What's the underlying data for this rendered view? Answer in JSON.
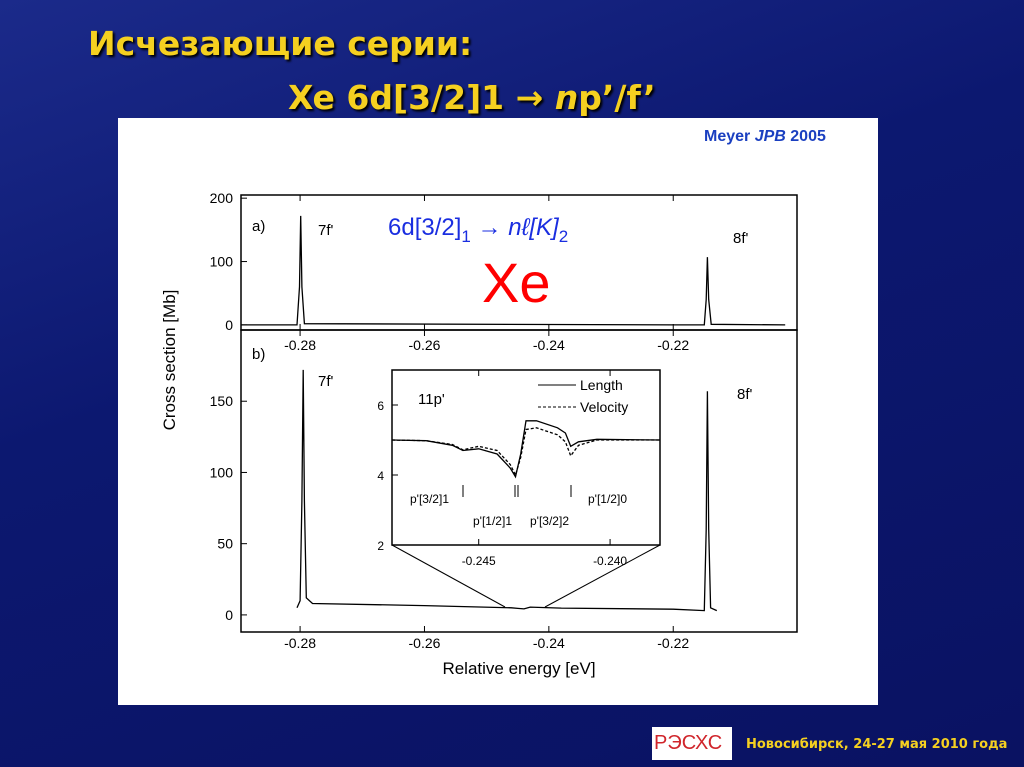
{
  "slide": {
    "title_line1": "Исчезающие серии:",
    "title_line2_prefix": "Xe 6d[3/2]1 ",
    "title_arrow": "→",
    "title_line2_n": "n",
    "title_line2_suffix": "p’/f’",
    "reference_author": "Meyer ",
    "reference_journal": "JPB",
    "reference_year": " 2005",
    "footer": "Новосибирск, 24-27 мая 2010 года",
    "logo_text": "РЭСХС",
    "colors": {
      "title": "#f5d020",
      "background": "#0c1870",
      "reference": "#1a3fc0",
      "element": "#ff0000",
      "transition": "#1a2ee0"
    }
  },
  "chart_data": [
    {
      "type": "line",
      "panel_label": "a)",
      "annotations": [
        "7f'",
        "8f'"
      ],
      "transition_label": {
        "main": "6d[3/2]",
        "sub1": "1",
        "arrow": " → ",
        "n": "n",
        "l": "ℓ",
        "K": "[K]",
        "sub2": "2"
      },
      "element_label": "Xe",
      "xlim": [
        -0.2895,
        -0.2001
      ],
      "ylim": [
        -8,
        205
      ],
      "yticks": [
        "0",
        "100",
        "200"
      ],
      "series": [
        {
          "x": [
            -0.2895,
            -0.2805,
            -0.2801,
            -0.2799,
            -0.2797,
            -0.2793,
            -0.22,
            -0.215,
            -0.2147,
            -0.2145,
            -0.2143,
            -0.2139,
            -0.202
          ],
          "y": [
            0,
            0,
            60,
            172,
            60,
            2,
            0,
            0,
            40,
            107,
            40,
            1,
            0
          ]
        }
      ]
    },
    {
      "type": "line",
      "panel_label": "b)",
      "annotations": [
        "7f'",
        "8f'"
      ],
      "xlim": [
        -0.2895,
        -0.2001
      ],
      "ylim": [
        -12,
        200
      ],
      "xticks": [
        "-0.28",
        "-0.26",
        "-0.24",
        "-0.22"
      ],
      "yticks": [
        "0",
        "50",
        "100",
        "150"
      ],
      "xlabel": "Relative energy [eV]",
      "ylabel": "Cross section [Mb]",
      "series": [
        {
          "x": [
            -0.2805,
            -0.28,
            -0.2797,
            -0.2795,
            -0.2793,
            -0.279,
            -0.278,
            -0.26,
            -0.246,
            -0.245,
            -0.244,
            -0.243,
            -0.238,
            -0.22,
            -0.215,
            -0.2147,
            -0.2145,
            -0.2143,
            -0.214,
            -0.213
          ],
          "y": [
            5,
            10,
            80,
            172,
            80,
            12,
            8,
            6.5,
            5,
            4.6,
            4.2,
            5.5,
            4.8,
            4,
            3,
            60,
            157,
            60,
            5,
            3
          ]
        }
      ]
    },
    {
      "type": "line",
      "panel_label": "11p'",
      "xlim": [
        -0.2483,
        -0.2381
      ],
      "ylim": [
        2,
        7
      ],
      "xticks": [
        "-0.245",
        "-0.240"
      ],
      "yticks": [
        "2",
        "4",
        "6"
      ],
      "legend": "top-right",
      "resonance_labels": [
        "p'[3/2]1",
        "p'[1/2]1",
        "p'[3/2]2",
        "p'[1/2]0"
      ],
      "series": [
        {
          "name": "Length",
          "x": [
            -0.2483,
            -0.247,
            -0.246,
            -0.2456,
            -0.245,
            -0.2443,
            -0.2438,
            -0.2436,
            -0.2434,
            -0.2432,
            -0.2428,
            -0.242,
            -0.2417,
            -0.2415,
            -0.2412,
            -0.2405,
            -0.2381
          ],
          "y": [
            5.0,
            4.98,
            4.85,
            4.7,
            4.75,
            4.6,
            4.2,
            3.95,
            4.6,
            5.55,
            5.55,
            5.35,
            5.2,
            4.82,
            4.95,
            5.02,
            5.0
          ]
        },
        {
          "name": "Velocity",
          "x": [
            -0.2483,
            -0.247,
            -0.246,
            -0.2456,
            -0.245,
            -0.2443,
            -0.2438,
            -0.2436,
            -0.2434,
            -0.2432,
            -0.2428,
            -0.242,
            -0.2417,
            -0.2415,
            -0.2412,
            -0.2405,
            -0.2381
          ],
          "y": [
            5.0,
            4.98,
            4.87,
            4.72,
            4.82,
            4.7,
            4.3,
            4.0,
            4.5,
            5.3,
            5.35,
            5.15,
            4.95,
            4.55,
            4.85,
            5.0,
            5.0
          ]
        }
      ]
    }
  ]
}
